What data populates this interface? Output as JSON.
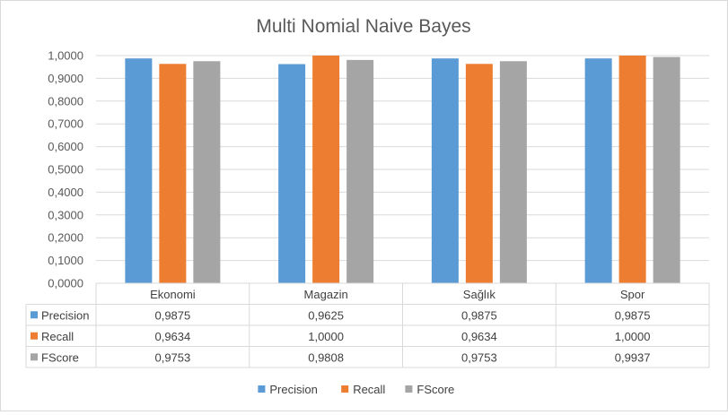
{
  "chart_data": {
    "type": "bar",
    "title": "Multi Nomial Naive Bayes",
    "categories": [
      "Ekonomi",
      "Magazin",
      "Sağlık",
      "Spor"
    ],
    "series": [
      {
        "name": "Precision",
        "color": "#5b9bd5",
        "values": [
          0.9875,
          0.9625,
          0.9875,
          0.9875
        ],
        "labels": [
          "0,9875",
          "0,9625",
          "0,9875",
          "0,9875"
        ]
      },
      {
        "name": "Recall",
        "color": "#ed7d31",
        "values": [
          0.9634,
          1.0,
          0.9634,
          1.0
        ],
        "labels": [
          "0,9634",
          "1,0000",
          "0,9634",
          "1,0000"
        ]
      },
      {
        "name": "FScore",
        "color": "#a5a5a5",
        "values": [
          0.9753,
          0.9808,
          0.9753,
          0.9937
        ],
        "labels": [
          "0,9753",
          "0,9808",
          "0,9753",
          "0,9937"
        ]
      }
    ],
    "ylim": [
      0,
      1
    ],
    "yticks": [
      0,
      0.1,
      0.2,
      0.3,
      0.4,
      0.5,
      0.6,
      0.7,
      0.8,
      0.9,
      1.0
    ],
    "ytick_labels": [
      "0,0000",
      "0,1000",
      "0,2000",
      "0,3000",
      "0,4000",
      "0,5000",
      "0,6000",
      "0,7000",
      "0,8000",
      "0,9000",
      "1,0000"
    ],
    "grid": true,
    "data_table": true,
    "legend_position": "bottom"
  }
}
